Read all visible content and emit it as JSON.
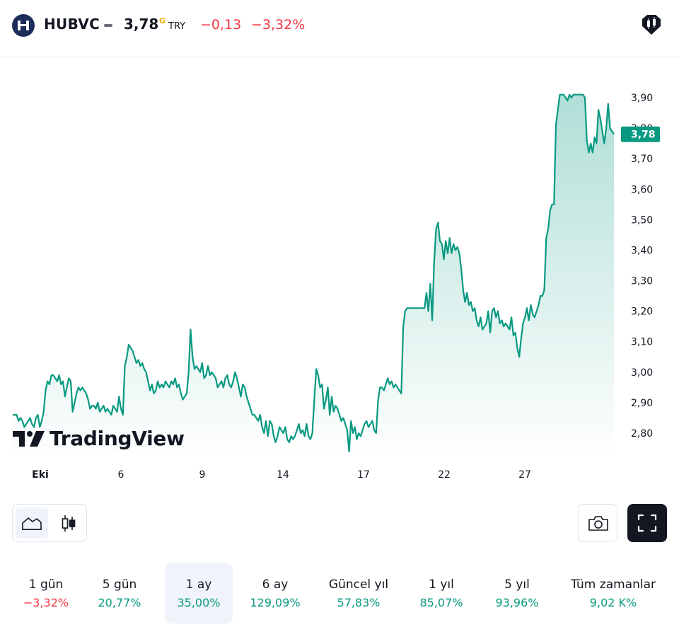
{
  "header": {
    "ticker": "HUBVC",
    "price": "3,78",
    "price_flag": "G",
    "currency": "TRY",
    "change": "−0,13",
    "change_pct": "−3,32%",
    "logo_icon": "hubvc-logo-icon",
    "brand_icon": "tradingview-logo-icon"
  },
  "colors": {
    "line": "#089981",
    "negative": "#f23645",
    "positive": "#089981",
    "last_price_bg": "#089981"
  },
  "watermark": "TradingView",
  "chart_data": {
    "type": "area",
    "title": "",
    "xlabel": "",
    "ylabel": "",
    "x_ticks": [
      "Eki",
      "6",
      "9",
      "14",
      "17",
      "22",
      "27"
    ],
    "y_ticks": [
      "3,90",
      "3,80",
      "3,70",
      "3,60",
      "3,50",
      "3,40",
      "3,30",
      "3,20",
      "3,10",
      "3,00",
      "2,90",
      "2,80"
    ],
    "ylim": [
      2.77,
      3.93
    ],
    "y_axis_side": "right",
    "last_price": 3.78,
    "last_price_label": "3,78",
    "grid": false,
    "x_note": "trading days Oct 1 – Oct 31; series sampled approx. per 30-min interval",
    "series": [
      {
        "values": [
          2.86,
          2.86,
          2.86,
          2.84,
          2.85,
          2.84,
          2.82,
          2.83,
          2.84,
          2.85,
          2.83,
          2.82,
          2.85,
          2.86,
          2.82,
          2.84,
          2.87,
          2.94,
          2.97,
          2.96,
          2.99,
          2.99,
          2.98,
          2.97,
          2.99,
          2.96,
          2.97,
          2.92,
          2.95,
          2.98,
          2.97,
          2.87,
          2.9,
          2.93,
          2.95,
          2.94,
          2.95,
          2.94,
          2.93,
          2.91,
          2.88,
          2.89,
          2.89,
          2.88,
          2.9,
          2.87,
          2.88,
          2.89,
          2.87,
          2.88,
          2.87,
          2.86,
          2.89,
          2.88,
          2.87,
          2.92,
          2.88,
          2.86,
          3.02,
          3.05,
          3.09,
          3.08,
          3.07,
          3.05,
          3.03,
          3.04,
          3.02,
          3.03,
          3.01,
          3.0,
          2.97,
          2.94,
          2.96,
          2.93,
          2.94,
          2.97,
          2.95,
          2.96,
          2.95,
          2.97,
          2.96,
          2.95,
          2.97,
          2.96,
          2.98,
          2.95,
          2.96,
          2.93,
          2.91,
          2.92,
          2.93,
          3.0,
          3.14,
          3.05,
          3.01,
          3.02,
          3.01,
          3.0,
          3.03,
          2.98,
          2.99,
          3.02,
          2.99,
          3.0,
          2.99,
          2.98,
          2.95,
          2.96,
          2.97,
          2.95,
          2.98,
          2.99,
          2.96,
          2.95,
          2.97,
          3.0,
          2.98,
          2.95,
          2.92,
          2.96,
          2.95,
          2.92,
          2.9,
          2.88,
          2.86,
          2.86,
          2.85,
          2.84,
          2.86,
          2.82,
          2.8,
          2.84,
          2.79,
          2.84,
          2.83,
          2.79,
          2.77,
          2.79,
          2.82,
          2.81,
          2.8,
          2.82,
          2.78,
          2.77,
          2.79,
          2.78,
          2.79,
          2.81,
          2.83,
          2.8,
          2.81,
          2.79,
          2.83,
          2.79,
          2.78,
          2.8,
          2.91,
          3.01,
          2.99,
          2.95,
          2.96,
          2.88,
          2.91,
          2.95,
          2.86,
          2.92,
          2.87,
          2.89,
          2.88,
          2.86,
          2.84,
          2.85,
          2.83,
          2.81,
          2.74,
          2.84,
          2.8,
          2.82,
          2.78,
          2.8,
          2.79,
          2.81,
          2.83,
          2.84,
          2.82,
          2.83,
          2.84,
          2.81,
          2.8,
          2.91,
          2.95,
          2.95,
          2.94,
          2.96,
          2.98,
          2.96,
          2.97,
          2.95,
          2.96,
          2.95,
          2.94,
          2.93,
          3.15,
          3.2,
          3.21,
          3.21,
          3.21,
          3.21,
          3.21,
          3.21,
          3.21,
          3.21,
          3.21,
          3.21,
          3.26,
          3.2,
          3.29,
          3.17,
          3.36,
          3.47,
          3.49,
          3.43,
          3.42,
          3.37,
          3.43,
          3.39,
          3.44,
          3.39,
          3.42,
          3.4,
          3.41,
          3.39,
          3.34,
          3.27,
          3.23,
          3.26,
          3.22,
          3.23,
          3.2,
          3.21,
          3.17,
          3.15,
          3.18,
          3.14,
          3.15,
          3.16,
          3.2,
          3.13,
          3.2,
          3.21,
          3.18,
          3.2,
          3.16,
          3.17,
          3.15,
          3.16,
          3.15,
          3.14,
          3.18,
          3.12,
          3.13,
          3.08,
          3.05,
          3.11,
          3.16,
          3.18,
          3.21,
          3.17,
          3.22,
          3.19,
          3.18,
          3.2,
          3.22,
          3.25,
          3.25,
          3.27,
          3.44,
          3.47,
          3.53,
          3.55,
          3.55,
          3.81,
          3.86,
          3.91,
          3.91,
          3.91,
          3.9,
          3.89,
          3.91,
          3.9,
          3.91,
          3.91,
          3.91,
          3.91,
          3.91,
          3.91,
          3.9,
          3.76,
          3.72,
          3.75,
          3.72,
          3.77,
          3.75,
          3.86,
          3.83,
          3.79,
          3.75,
          3.8,
          3.88,
          3.8,
          3.79,
          3.78
        ]
      }
    ]
  },
  "chart_type_buttons": [
    {
      "name": "area-chart",
      "icon": "area-chart-icon",
      "active": true
    },
    {
      "name": "candles-chart",
      "icon": "candlestick-icon",
      "active": false
    }
  ],
  "actions": {
    "camera_icon": "camera-icon",
    "fullscreen_icon": "fullscreen-icon"
  },
  "periods": [
    {
      "label": "1 gün",
      "value": "−3,32%",
      "trend": "neg",
      "active": false
    },
    {
      "label": "5 gün",
      "value": "20,77%",
      "trend": "pos",
      "active": false
    },
    {
      "label": "1 ay",
      "value": "35,00%",
      "trend": "pos",
      "active": true
    },
    {
      "label": "6 ay",
      "value": "129,09%",
      "trend": "pos",
      "active": false
    },
    {
      "label": "Güncel yıl",
      "value": "57,83%",
      "trend": "pos",
      "active": false
    },
    {
      "label": "1 yıl",
      "value": "85,07%",
      "trend": "pos",
      "active": false
    },
    {
      "label": "5 yıl",
      "value": "93,96%",
      "trend": "pos",
      "active": false
    },
    {
      "label": "Tüm zamanlar",
      "value": "9,02 K%",
      "trend": "pos",
      "active": false
    }
  ]
}
